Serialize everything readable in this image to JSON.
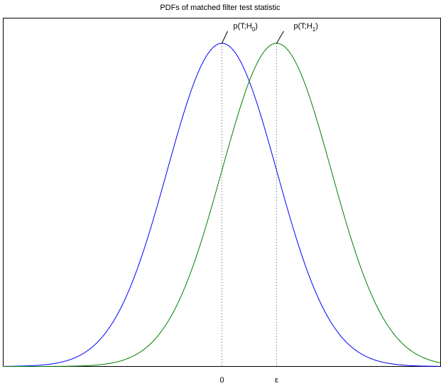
{
  "chart_data": {
    "type": "line",
    "title": "PDFs of matched filter test statistic",
    "xlabel": "",
    "ylabel": "",
    "xlim": [
      -4,
      4
    ],
    "ylim": [
      0,
      0.43
    ],
    "grid": false,
    "legend": "none",
    "xticks": [
      {
        "value": 0,
        "label": "0"
      },
      {
        "value": 1,
        "label": "ε"
      }
    ],
    "series": [
      {
        "key": "h0",
        "color": "#0000ff",
        "mean": 0,
        "std": 1
      },
      {
        "key": "h1",
        "color": "#007f00",
        "mean": 1,
        "std": 1
      }
    ],
    "annotations": [
      {
        "key": "h0",
        "base": "p(T;H",
        "sub": "0",
        "close": ")"
      },
      {
        "key": "h1",
        "base": "p(T;H",
        "sub": "1",
        "close": ")"
      }
    ]
  }
}
